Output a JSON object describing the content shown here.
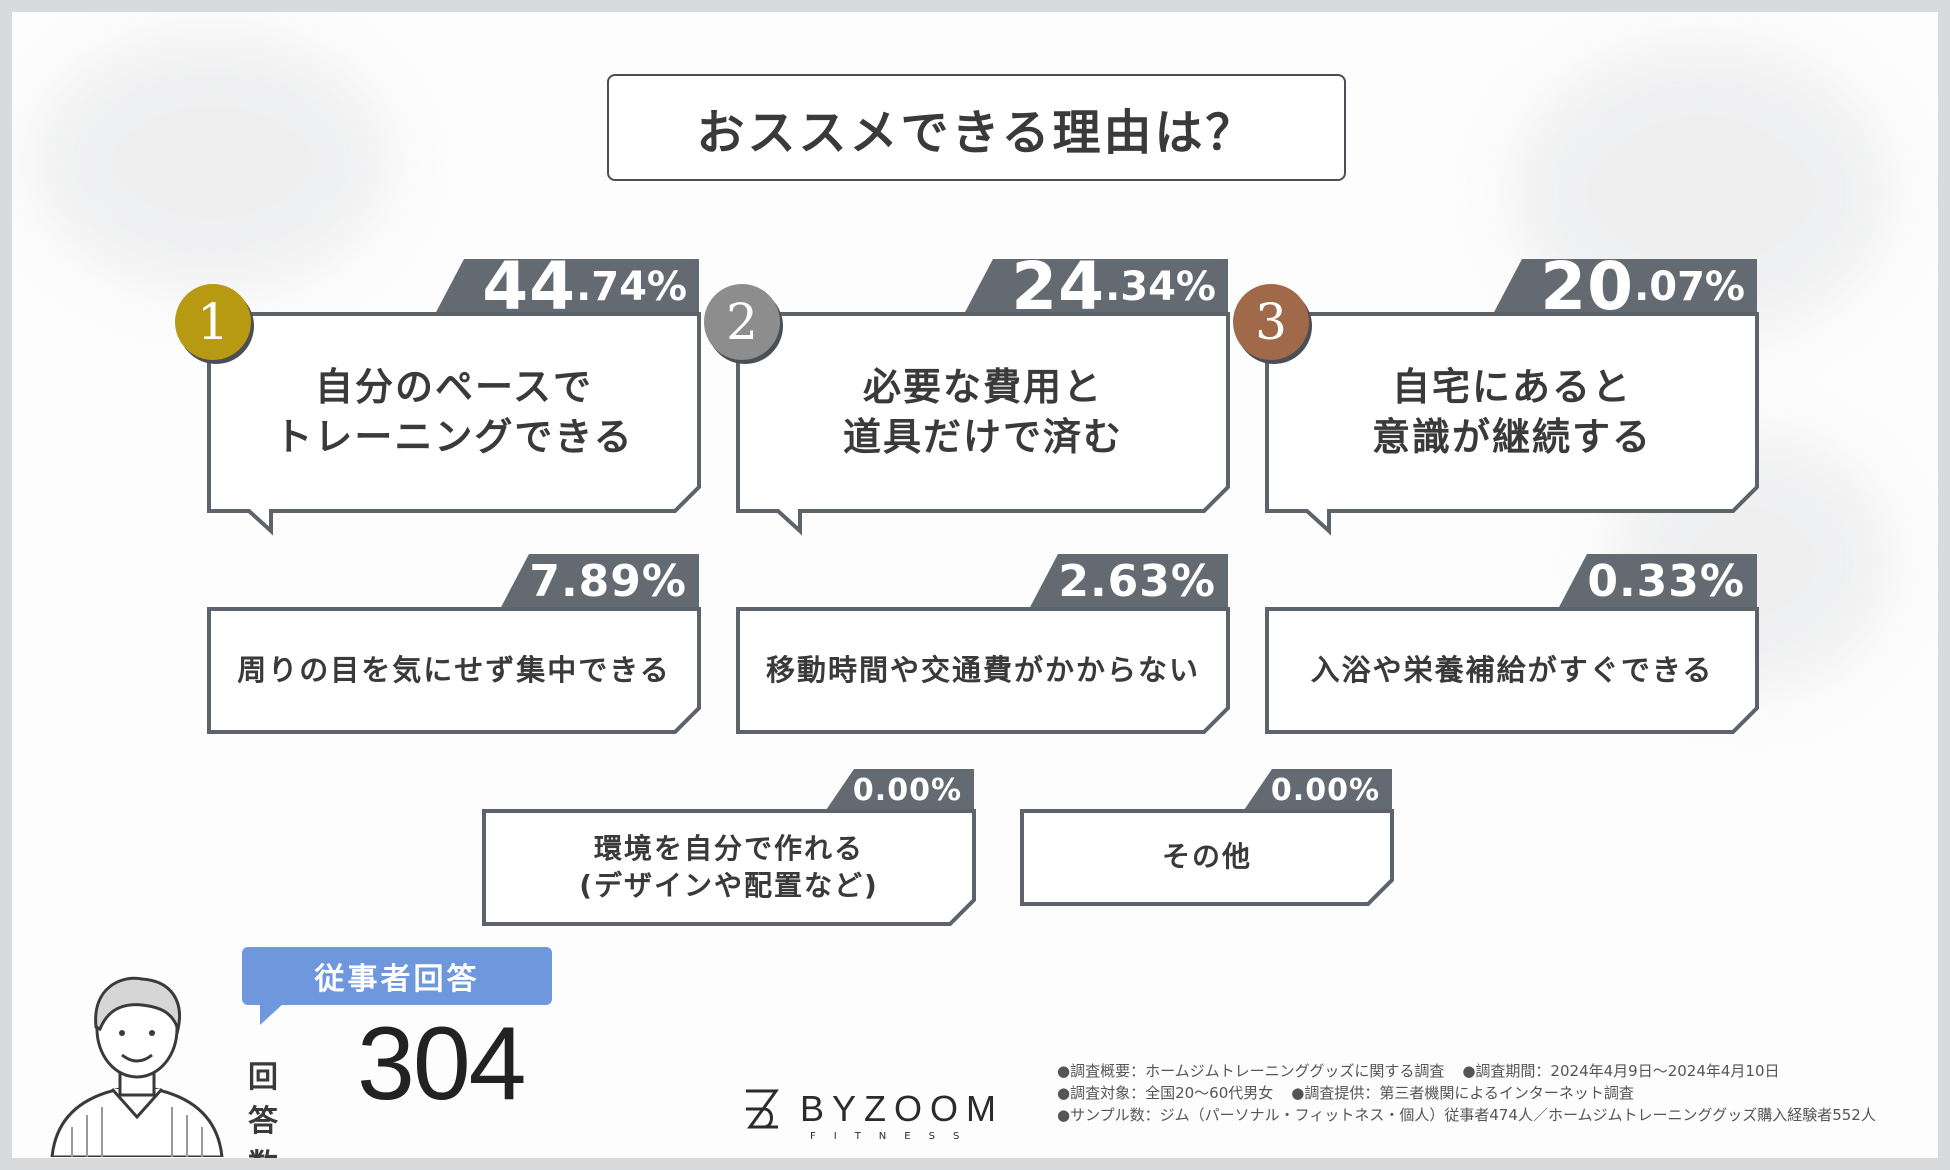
{
  "title": "おススメできる理由は？",
  "chart_data": {
    "type": "bar",
    "title": "おススメできる理由は？",
    "categories": [
      "自分のペースでトレーニングできる",
      "必要な費用と道具だけで済む",
      "自宅にあると意識が継続する",
      "周りの目を気にせず集中できる",
      "移動時間や交通費がかからない",
      "入浴や栄養補給がすぐできる",
      "環境を自分で作れる(デザインや配置など)",
      "その他"
    ],
    "values": [
      44.74,
      24.34,
      20.07,
      7.89,
      2.63,
      0.33,
      0.0,
      0.0
    ],
    "unit": "%"
  },
  "ranks": [
    "1",
    "2",
    "3"
  ],
  "medal_colors": [
    "#b89a12",
    "#8d8d8d",
    "#a06a4a"
  ],
  "items": [
    {
      "pct_int": "44",
      "pct_dec": ".74%",
      "lines": [
        "自分のペースで",
        "トレーニングできる"
      ]
    },
    {
      "pct_int": "24",
      "pct_dec": ".34%",
      "lines": [
        "必要な費用と",
        "道具だけで済む"
      ]
    },
    {
      "pct_int": "20",
      "pct_dec": ".07%",
      "lines": [
        "自宅にあると",
        "意識が継続する"
      ]
    },
    {
      "pct": "7.89%",
      "lines": [
        "周りの目を気にせず集中できる"
      ]
    },
    {
      "pct": "2.63%",
      "lines": [
        "移動時間や交通費がかからない"
      ]
    },
    {
      "pct": "0.33%",
      "lines": [
        "入浴や栄養補給がすぐできる"
      ]
    },
    {
      "pct": "0.00%",
      "lines": [
        "環境を自分で作れる",
        "(デザインや配置など)"
      ]
    },
    {
      "pct": "0.00%",
      "lines": [
        "その他"
      ]
    }
  ],
  "respondent": {
    "label": "従事者回答",
    "count_label": "回答数",
    "count": "304"
  },
  "logo": {
    "name": "BYZOOM",
    "sub": "FITNESS"
  },
  "notes": [
    [
      "●調査概要：ホームジムトレーニンググッズに関する調査",
      "●調査期間：2024年4月9日～2024年4月10日"
    ],
    [
      "●調査対象：全国20～60代男女",
      "●調査提供：第三者機関によるインターネット調査"
    ],
    [
      "●サンプル数：ジム（パーソナル・フィットネス・個人）従事者474人／ホームジムトレーニンググッズ購入経験者552人"
    ]
  ],
  "colors": {
    "tab": "#646a71",
    "border": "#5d636a",
    "label_bg": "#6f97dd"
  }
}
